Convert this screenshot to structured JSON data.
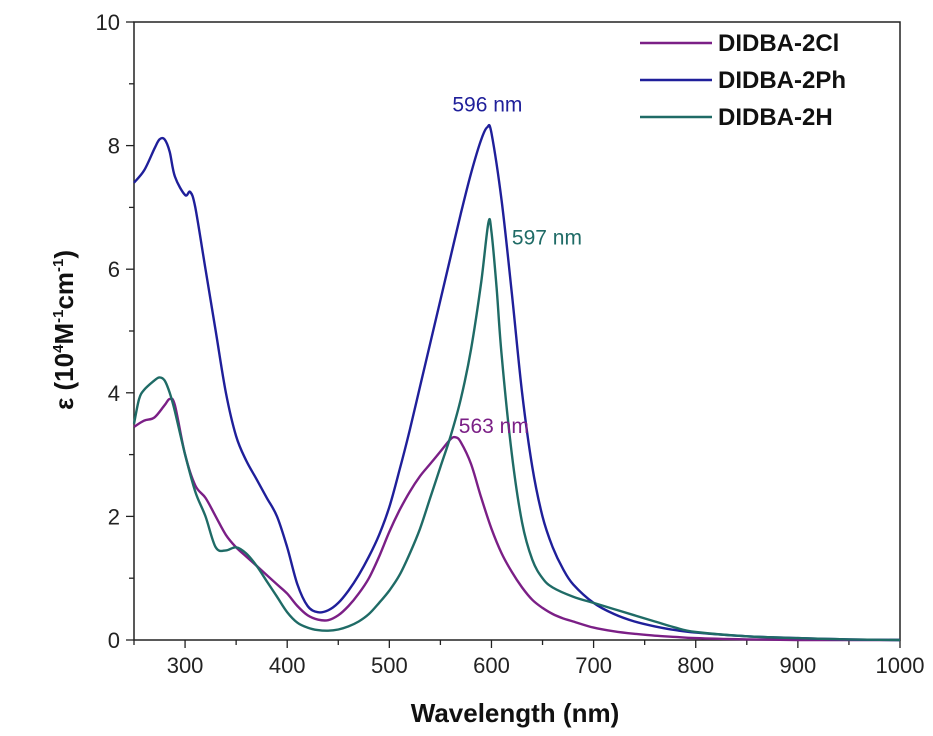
{
  "chart_data": {
    "type": "line",
    "xlabel": "Wavelength (nm)",
    "ylabel_main": "ε (10",
    "ylabel_sup1": "4",
    "ylabel_mid": "M",
    "ylabel_sup2": "-1",
    "ylabel_mid2": "cm",
    "ylabel_sup3": "-1",
    "ylabel_end": ")",
    "xlim": [
      250,
      1000
    ],
    "ylim": [
      0,
      10
    ],
    "xticks": [
      300,
      400,
      500,
      600,
      700,
      800,
      900,
      1000
    ],
    "yticks": [
      0,
      2,
      4,
      6,
      8,
      10
    ],
    "legend_position": "top-right",
    "series": [
      {
        "name": "DIDBA-2Cl",
        "color": "#7b1f86",
        "x": [
          250,
          260,
          270,
          280,
          285,
          290,
          300,
          310,
          320,
          330,
          340,
          350,
          360,
          370,
          380,
          390,
          400,
          410,
          420,
          430,
          440,
          450,
          460,
          470,
          480,
          490,
          500,
          510,
          520,
          530,
          540,
          550,
          560,
          565,
          570,
          580,
          590,
          600,
          610,
          620,
          630,
          640,
          650,
          660,
          670,
          680,
          700,
          720,
          740,
          760,
          780,
          800,
          850,
          900,
          950,
          1000
        ],
        "values": [
          3.45,
          3.55,
          3.6,
          3.8,
          3.9,
          3.8,
          3.0,
          2.5,
          2.3,
          2.0,
          1.7,
          1.5,
          1.35,
          1.2,
          1.05,
          0.9,
          0.75,
          0.55,
          0.4,
          0.33,
          0.32,
          0.4,
          0.55,
          0.75,
          1.0,
          1.35,
          1.75,
          2.1,
          2.4,
          2.65,
          2.85,
          3.05,
          3.25,
          3.28,
          3.2,
          2.85,
          2.3,
          1.8,
          1.4,
          1.1,
          0.85,
          0.65,
          0.52,
          0.42,
          0.35,
          0.3,
          0.2,
          0.14,
          0.1,
          0.07,
          0.05,
          0.03,
          0.01,
          0.0,
          0.0,
          0.0
        ]
      },
      {
        "name": "DIDBA-2Ph",
        "color": "#1f1f9a",
        "x": [
          250,
          260,
          270,
          275,
          280,
          285,
          290,
          300,
          305,
          310,
          320,
          330,
          340,
          350,
          360,
          370,
          380,
          390,
          400,
          410,
          420,
          430,
          440,
          450,
          460,
          470,
          480,
          490,
          500,
          510,
          520,
          530,
          540,
          550,
          560,
          570,
          580,
          590,
          596,
          600,
          610,
          620,
          630,
          640,
          650,
          660,
          670,
          680,
          700,
          720,
          740,
          760,
          780,
          800,
          850,
          900,
          950,
          1000
        ],
        "values": [
          7.4,
          7.6,
          7.95,
          8.1,
          8.1,
          7.9,
          7.5,
          7.2,
          7.25,
          7.0,
          6.0,
          5.0,
          4.0,
          3.3,
          2.9,
          2.6,
          2.3,
          2.0,
          1.5,
          0.9,
          0.55,
          0.45,
          0.48,
          0.6,
          0.8,
          1.05,
          1.35,
          1.7,
          2.15,
          2.75,
          3.4,
          4.1,
          4.8,
          5.5,
          6.2,
          6.9,
          7.55,
          8.1,
          8.3,
          8.2,
          7.1,
          5.6,
          4.0,
          2.8,
          2.0,
          1.5,
          1.15,
          0.9,
          0.6,
          0.42,
          0.3,
          0.22,
          0.16,
          0.12,
          0.06,
          0.03,
          0.01,
          0.0
        ]
      },
      {
        "name": "DIDBA-2H",
        "color": "#1f6b66",
        "x": [
          250,
          255,
          260,
          270,
          275,
          280,
          285,
          290,
          300,
          310,
          320,
          330,
          340,
          350,
          360,
          370,
          380,
          390,
          400,
          410,
          420,
          430,
          440,
          450,
          460,
          470,
          480,
          490,
          500,
          510,
          520,
          530,
          540,
          550,
          560,
          570,
          580,
          590,
          597,
          600,
          605,
          610,
          620,
          630,
          640,
          650,
          660,
          680,
          700,
          720,
          740,
          760,
          780,
          800,
          850,
          900,
          950,
          1000
        ],
        "values": [
          3.5,
          3.9,
          4.05,
          4.2,
          4.25,
          4.2,
          4.0,
          3.7,
          3.0,
          2.4,
          2.0,
          1.5,
          1.45,
          1.5,
          1.4,
          1.2,
          0.95,
          0.7,
          0.45,
          0.28,
          0.2,
          0.16,
          0.15,
          0.17,
          0.22,
          0.3,
          0.42,
          0.6,
          0.8,
          1.05,
          1.4,
          1.8,
          2.3,
          2.8,
          3.3,
          3.9,
          4.7,
          5.8,
          6.75,
          6.6,
          5.7,
          4.6,
          3.0,
          1.9,
          1.3,
          1.0,
          0.85,
          0.7,
          0.6,
          0.5,
          0.4,
          0.3,
          0.2,
          0.13,
          0.06,
          0.03,
          0.01,
          0.0
        ]
      }
    ],
    "annotations": [
      {
        "text": "596 nm",
        "x": 596,
        "y": 8.55,
        "color": "#1f1f9a",
        "anchor": "middle"
      },
      {
        "text": "597 nm",
        "x": 620,
        "y": 6.4,
        "color": "#1f6b66",
        "anchor": "start"
      },
      {
        "text": "563 nm",
        "x": 568,
        "y": 3.35,
        "color": "#7b1f86",
        "anchor": "start"
      }
    ]
  }
}
